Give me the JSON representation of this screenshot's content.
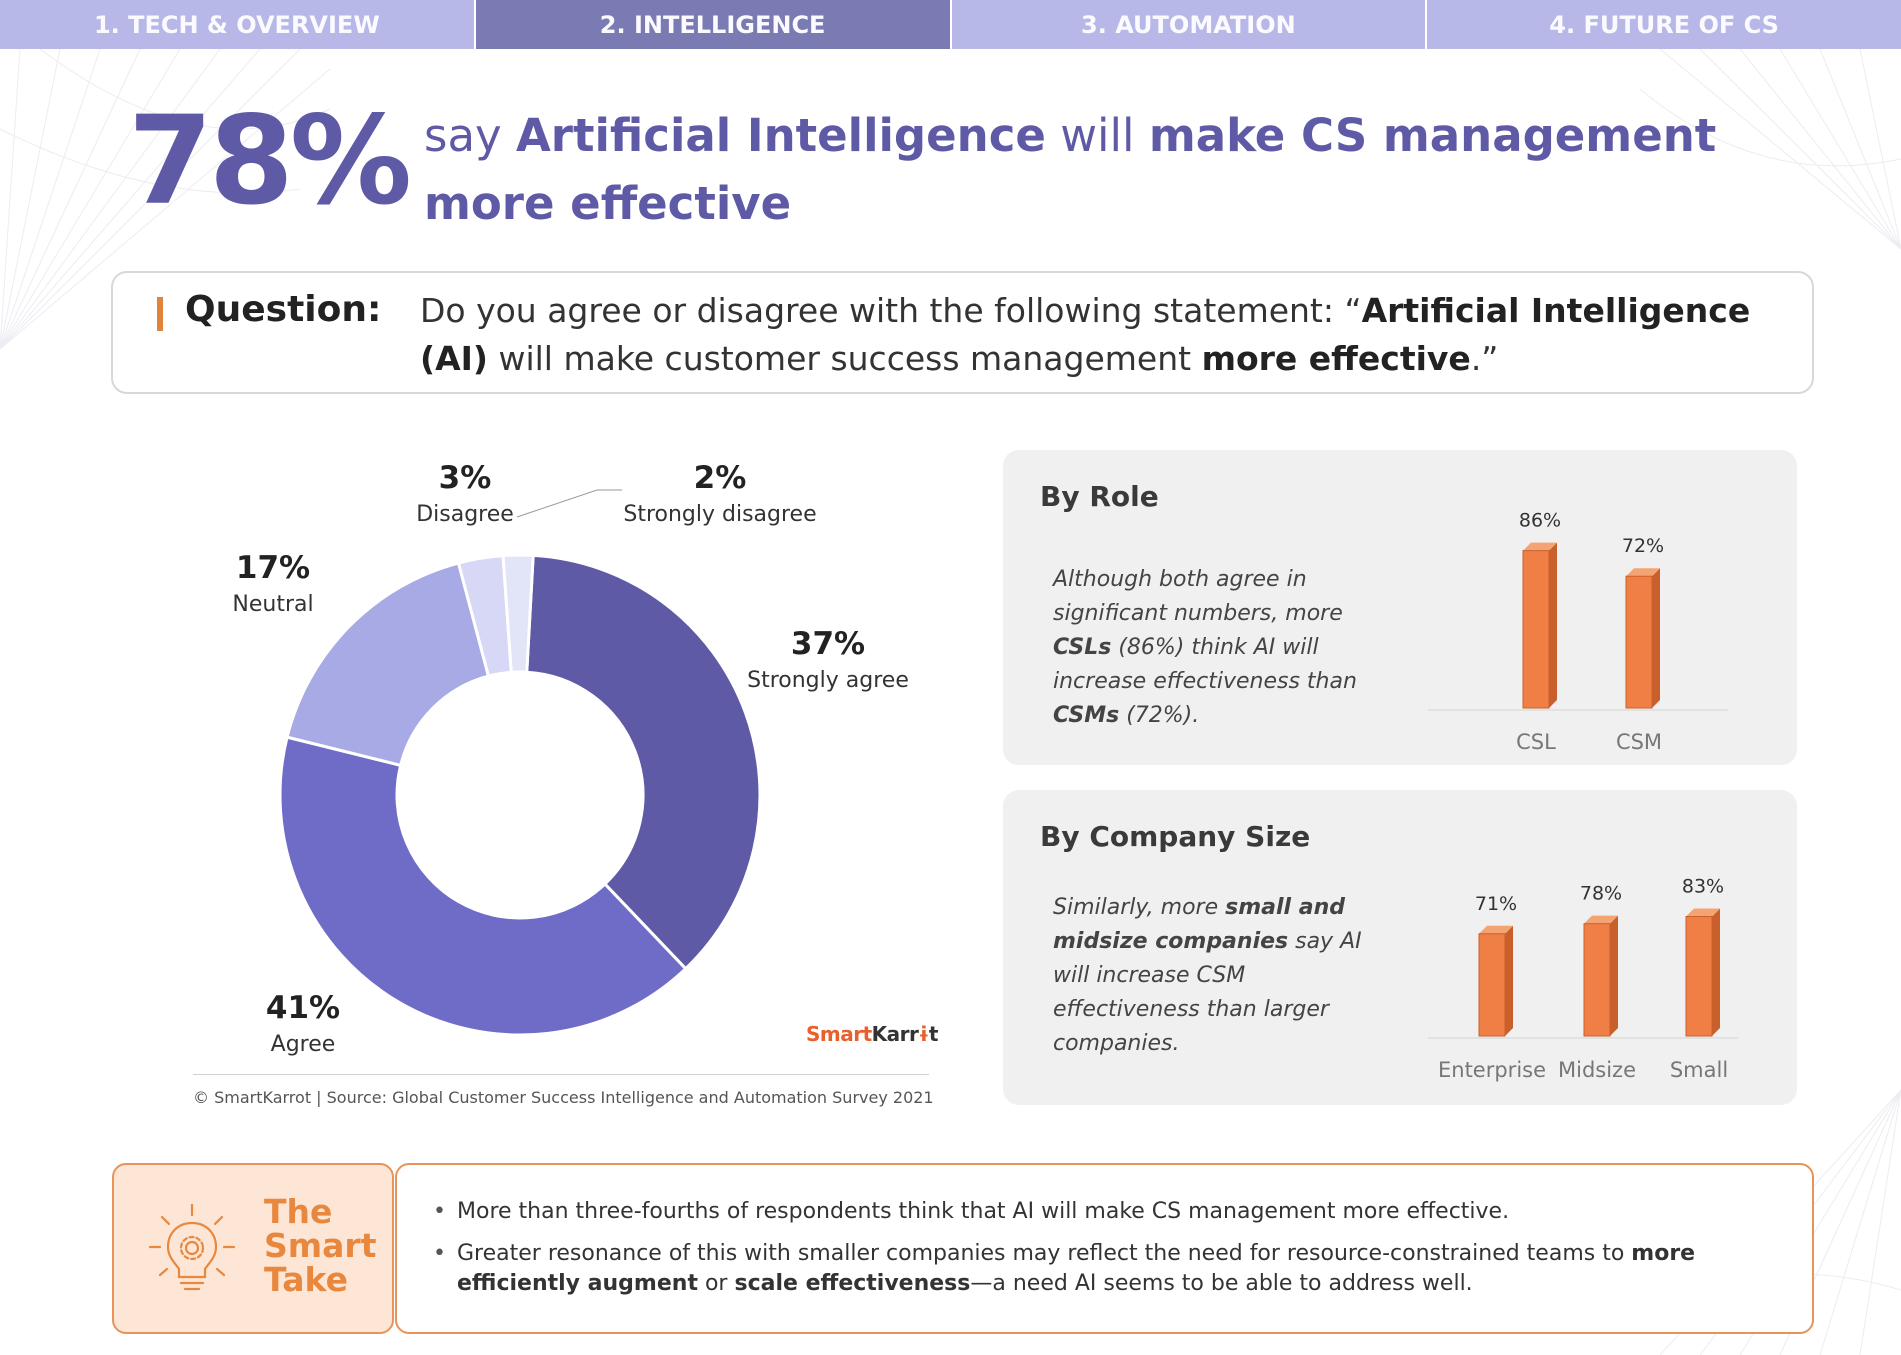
{
  "nav": {
    "tabs": [
      {
        "label": "1. TECH & OVERVIEW",
        "active": false
      },
      {
        "label": "2. INTELLIGENCE",
        "active": true
      },
      {
        "label": "3. AUTOMATION",
        "active": false
      },
      {
        "label": "4. FUTURE OF CS",
        "active": false
      }
    ]
  },
  "headline": {
    "big_value": "78%",
    "pre": "say ",
    "bold1": "Artificial Intelligence",
    "mid": " will ",
    "bold2": "make CS management more effective"
  },
  "question": {
    "label": "Question:",
    "text_pre": "Do you agree or disagree with the following statement: “",
    "text_bold1": "Artificial Intelligence (AI)",
    "text_mid": " will make customer success management ",
    "text_bold2": "more effective",
    "text_post": ".”"
  },
  "colors": {
    "accent_purple": "#5f5aa6",
    "nav_active": "#7b7bb3",
    "nav_inactive": "#b7b7e8",
    "bar_orange": "#ef7f45",
    "take_orange": "#e8883e"
  },
  "brand": {
    "part1": "Smart",
    "part2": "Karr",
    "part3": "t"
  },
  "source": "© SmartKarrot | Source: Global Customer Success Intelligence and Automation Survey 2021",
  "chart_data": [
    {
      "type": "pie",
      "subtype": "donut",
      "slices": [
        {
          "name": "Strongly agree",
          "value": 37,
          "label": "37%",
          "color": "#5f5aa6"
        },
        {
          "name": "Agree",
          "value": 41,
          "label": "41%",
          "color": "#6f6cc8"
        },
        {
          "name": "Neutral",
          "value": 17,
          "label": "17%",
          "color": "#a8aae6"
        },
        {
          "name": "Disagree",
          "value": 3,
          "label": "3%",
          "color": "#d6d8f5"
        },
        {
          "name": "Strongly disagree",
          "value": 2,
          "label": "2%",
          "color": "#e2e4f7"
        }
      ]
    },
    {
      "type": "bar",
      "title": "By Role",
      "description_parts": [
        "Although both agree in significant numbers, more ",
        "CSLs",
        " (86%) think AI will increase effectiveness than ",
        "CSMs",
        " (72%)."
      ],
      "categories": [
        "CSL",
        "CSM"
      ],
      "values": [
        86,
        72
      ],
      "value_labels": [
        "86%",
        "72%"
      ],
      "ylim": [
        0,
        100
      ]
    },
    {
      "type": "bar",
      "title": "By Company Size",
      "description_parts": [
        "Similarly, more ",
        "small and midsize companies",
        " say AI will increase CSM effectiveness than larger companies."
      ],
      "categories": [
        "Enterprise",
        "Midsize",
        "Small"
      ],
      "values": [
        71,
        78,
        83
      ],
      "value_labels": [
        "71%",
        "78%",
        "83%"
      ],
      "ylim": [
        0,
        100
      ]
    }
  ],
  "smart_take": {
    "title_lines": [
      "The",
      "Smart",
      "Take"
    ],
    "bullet1": "More than three-fourths of respondents think that AI will make CS management more effective.",
    "bullet2_pre": "Greater resonance of this with smaller companies may reflect the need for resource-constrained teams to ",
    "bullet2_b1": "more efficiently augment",
    "bullet2_mid": " or ",
    "bullet2_b2": "scale effectiveness",
    "bullet2_post": "—a need AI seems to be able to address well."
  }
}
